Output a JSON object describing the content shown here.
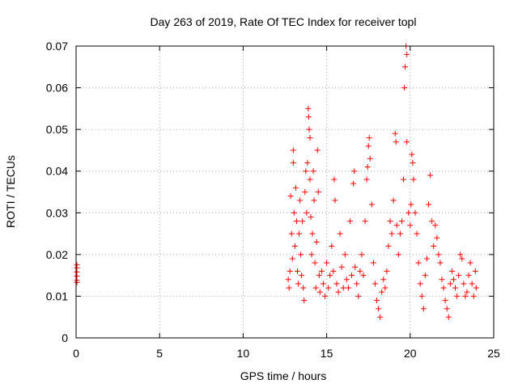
{
  "chart_data": {
    "type": "scatter",
    "title": "Day 263 of 2019, Rate Of TEC Index for receiver topl",
    "xlabel": "GPS time / hours",
    "ylabel": "ROTI / TECUs",
    "xlim": [
      0,
      25
    ],
    "ylim": [
      0,
      0.07
    ],
    "x_ticks": [
      "0",
      "5",
      "10",
      "15",
      "20",
      "25"
    ],
    "y_ticks": [
      "0",
      "0.01",
      "0.02",
      "0.03",
      "0.04",
      "0.05",
      "0.06",
      "0.07"
    ],
    "grid": true,
    "marker": "+",
    "series_color": "#ff0000",
    "points": [
      [
        0.05,
        0.0175
      ],
      [
        0.05,
        0.0168
      ],
      [
        0.05,
        0.0158
      ],
      [
        0.05,
        0.0148
      ],
      [
        0.05,
        0.0138
      ],
      [
        0.05,
        0.0133
      ],
      [
        12.7,
        0.014
      ],
      [
        12.75,
        0.012
      ],
      [
        12.8,
        0.016
      ],
      [
        12.85,
        0.034
      ],
      [
        12.9,
        0.025
      ],
      [
        12.95,
        0.019
      ],
      [
        13.0,
        0.045
      ],
      [
        13.0,
        0.042
      ],
      [
        13.05,
        0.03
      ],
      [
        13.1,
        0.022
      ],
      [
        13.15,
        0.036
      ],
      [
        13.2,
        0.028
      ],
      [
        13.25,
        0.016
      ],
      [
        13.3,
        0.013
      ],
      [
        13.35,
        0.025
      ],
      [
        13.4,
        0.033
      ],
      [
        13.45,
        0.02
      ],
      [
        13.5,
        0.015
      ],
      [
        13.55,
        0.028
      ],
      [
        13.6,
        0.012
      ],
      [
        13.65,
        0.009
      ],
      [
        13.7,
        0.035
      ],
      [
        13.75,
        0.04
      ],
      [
        13.8,
        0.03
      ],
      [
        13.85,
        0.042
      ],
      [
        13.9,
        0.055
      ],
      [
        13.92,
        0.053
      ],
      [
        13.95,
        0.05
      ],
      [
        14.0,
        0.048
      ],
      [
        14.0,
        0.038
      ],
      [
        14.05,
        0.029
      ],
      [
        14.1,
        0.02
      ],
      [
        14.15,
        0.025
      ],
      [
        14.2,
        0.04
      ],
      [
        14.25,
        0.033
      ],
      [
        14.3,
        0.018
      ],
      [
        14.35,
        0.012
      ],
      [
        14.4,
        0.023
      ],
      [
        14.45,
        0.045
      ],
      [
        14.5,
        0.035
      ],
      [
        14.55,
        0.015
      ],
      [
        14.6,
        0.011
      ],
      [
        14.7,
        0.016
      ],
      [
        14.8,
        0.013
      ],
      [
        14.9,
        0.01
      ],
      [
        15.0,
        0.018
      ],
      [
        15.1,
        0.012
      ],
      [
        15.2,
        0.015
      ],
      [
        15.3,
        0.022
      ],
      [
        15.4,
        0.016
      ],
      [
        15.45,
        0.038
      ],
      [
        15.5,
        0.033
      ],
      [
        15.6,
        0.013
      ],
      [
        15.7,
        0.011
      ],
      [
        15.8,
        0.025
      ],
      [
        15.9,
        0.017
      ],
      [
        16.0,
        0.012
      ],
      [
        16.1,
        0.02
      ],
      [
        16.2,
        0.014
      ],
      [
        16.3,
        0.012
      ],
      [
        16.4,
        0.028
      ],
      [
        16.5,
        0.015
      ],
      [
        16.6,
        0.037
      ],
      [
        16.65,
        0.04
      ],
      [
        16.7,
        0.017
      ],
      [
        16.8,
        0.013
      ],
      [
        16.9,
        0.01
      ],
      [
        17.0,
        0.016
      ],
      [
        17.1,
        0.02
      ],
      [
        17.2,
        0.015
      ],
      [
        17.3,
        0.028
      ],
      [
        17.4,
        0.038
      ],
      [
        17.45,
        0.041
      ],
      [
        17.5,
        0.046
      ],
      [
        17.55,
        0.048
      ],
      [
        17.6,
        0.043
      ],
      [
        17.7,
        0.032
      ],
      [
        17.8,
        0.018
      ],
      [
        17.9,
        0.013
      ],
      [
        18.0,
        0.009
      ],
      [
        18.1,
        0.007
      ],
      [
        18.2,
        0.005
      ],
      [
        18.3,
        0.011
      ],
      [
        18.4,
        0.014
      ],
      [
        18.5,
        0.012
      ],
      [
        18.6,
        0.016
      ],
      [
        18.7,
        0.022
      ],
      [
        18.8,
        0.028
      ],
      [
        18.9,
        0.025
      ],
      [
        19.0,
        0.033
      ],
      [
        19.1,
        0.049
      ],
      [
        19.15,
        0.047
      ],
      [
        19.2,
        0.027
      ],
      [
        19.3,
        0.02
      ],
      [
        19.4,
        0.025
      ],
      [
        19.5,
        0.028
      ],
      [
        19.6,
        0.038
      ],
      [
        19.65,
        0.06
      ],
      [
        19.7,
        0.065
      ],
      [
        19.75,
        0.07
      ],
      [
        19.8,
        0.068
      ],
      [
        19.8,
        0.047
      ],
      [
        19.9,
        0.03
      ],
      [
        20.0,
        0.027
      ],
      [
        20.05,
        0.032
      ],
      [
        20.1,
        0.044
      ],
      [
        20.15,
        0.042
      ],
      [
        20.2,
        0.038
      ],
      [
        20.3,
        0.03
      ],
      [
        20.4,
        0.025
      ],
      [
        20.5,
        0.018
      ],
      [
        20.6,
        0.013
      ],
      [
        20.7,
        0.01
      ],
      [
        20.8,
        0.007
      ],
      [
        20.9,
        0.015
      ],
      [
        21.0,
        0.019
      ],
      [
        21.1,
        0.032
      ],
      [
        21.2,
        0.039
      ],
      [
        21.3,
        0.028
      ],
      [
        21.4,
        0.022
      ],
      [
        21.5,
        0.027
      ],
      [
        21.6,
        0.024
      ],
      [
        21.7,
        0.02
      ],
      [
        21.8,
        0.018
      ],
      [
        21.9,
        0.014
      ],
      [
        22.0,
        0.012
      ],
      [
        22.1,
        0.009
      ],
      [
        22.2,
        0.007
      ],
      [
        22.3,
        0.005
      ],
      [
        22.4,
        0.013
      ],
      [
        22.5,
        0.016
      ],
      [
        22.6,
        0.014
      ],
      [
        22.7,
        0.012
      ],
      [
        22.8,
        0.01
      ],
      [
        22.9,
        0.015
      ],
      [
        23.0,
        0.02
      ],
      [
        23.1,
        0.019
      ],
      [
        23.2,
        0.013
      ],
      [
        23.3,
        0.01
      ],
      [
        23.4,
        0.011
      ],
      [
        23.5,
        0.015
      ],
      [
        23.6,
        0.018
      ],
      [
        23.7,
        0.013
      ],
      [
        23.8,
        0.01
      ],
      [
        23.9,
        0.016
      ],
      [
        23.95,
        0.012
      ]
    ]
  }
}
